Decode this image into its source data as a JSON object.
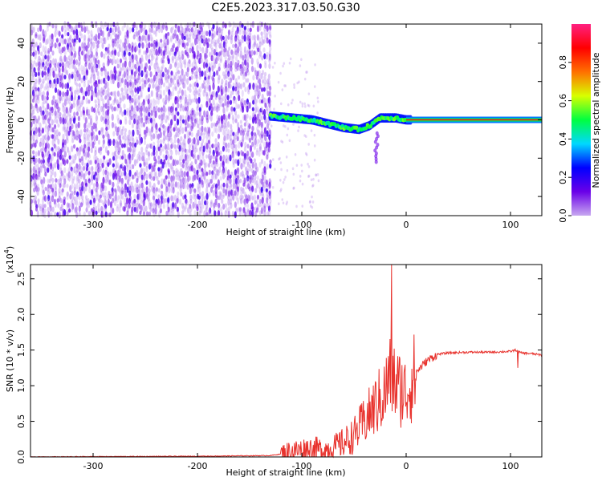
{
  "title": "C2E5.2023.317.03.50.G30",
  "chart_data": [
    {
      "type": "heatmap",
      "xlabel": "Height of straight line (km)",
      "ylabel": "Frequency (Hz)",
      "xlim": [
        -360,
        130
      ],
      "ylim": [
        -50,
        50
      ],
      "xticks": [
        -300,
        -200,
        -100,
        0,
        100
      ],
      "yticks": [
        -40,
        -20,
        0,
        20,
        40
      ],
      "noise_region": {
        "x_range": [
          -360,
          -130
        ],
        "y_range": [
          -50,
          50
        ]
      },
      "track_points": [
        {
          "x": -130,
          "y": 2
        },
        {
          "x": -110,
          "y": 1
        },
        {
          "x": -90,
          "y": 0
        },
        {
          "x": -75,
          "y": -2
        },
        {
          "x": -60,
          "y": -4
        },
        {
          "x": -45,
          "y": -5
        },
        {
          "x": -35,
          "y": -3
        },
        {
          "x": -25,
          "y": 1
        },
        {
          "x": -10,
          "y": 1
        },
        {
          "x": 0,
          "y": 0
        },
        {
          "x": 130,
          "y": 0
        }
      ],
      "tail": {
        "x": -30,
        "y_range": [
          -22,
          -6
        ]
      },
      "colorbar": {
        "label": "Normalized spectral amplitude",
        "range": [
          0.0,
          1.0
        ],
        "ticks": [
          0.0,
          0.2,
          0.4,
          0.6,
          0.8
        ],
        "colors": [
          "#c8a8f0",
          "#6a00e8",
          "#0000ff",
          "#00d8ff",
          "#00ff40",
          "#d8ff00",
          "#ff7000",
          "#ff0000",
          "#ff2080"
        ]
      }
    },
    {
      "type": "line",
      "xlabel": "Height of straight line (km)",
      "ylabel": "SNR (10 * v/v)",
      "y_multiplier": "(x10",
      "y_multiplier_exp": "4",
      "xlim": [
        -360,
        130
      ],
      "ylim": [
        0.0,
        2.7
      ],
      "xticks": [
        -300,
        -200,
        -100,
        0,
        100
      ],
      "yticks": [
        "0.0",
        "0.5",
        "1.0",
        "1.5",
        "2.0",
        "2.5"
      ],
      "series": [
        {
          "color": "#e8322d",
          "x": [
            -360,
            -300,
            -200,
            -130,
            -120,
            -110,
            -100,
            -90,
            -80,
            -70,
            -60,
            -50,
            -40,
            -30,
            -20,
            -15,
            -10,
            0,
            10,
            20,
            30,
            40,
            60,
            80,
            100,
            105,
            110,
            120,
            130
          ],
          "y": [
            0.0,
            0.005,
            0.01,
            0.02,
            0.04,
            0.08,
            0.1,
            0.12,
            0.1,
            0.13,
            0.2,
            0.3,
            0.5,
            0.7,
            0.9,
            1.2,
            1.0,
            0.9,
            1.2,
            1.35,
            1.44,
            1.46,
            1.47,
            1.47,
            1.48,
            1.5,
            1.46,
            1.45,
            1.43
          ]
        }
      ],
      "spikes": [
        {
          "x": -14,
          "y": 2.7
        },
        {
          "x": 107,
          "y": 1.25
        }
      ]
    }
  ]
}
